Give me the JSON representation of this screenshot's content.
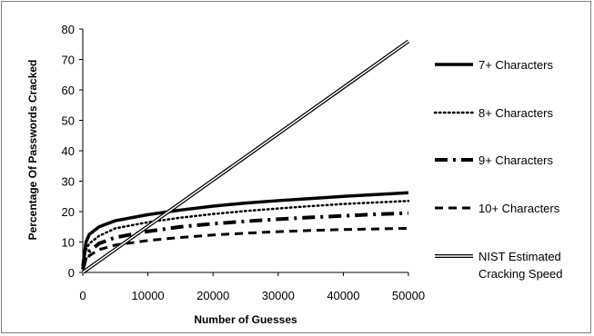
{
  "chart_data": {
    "type": "line",
    "title": "",
    "xlabel": "Number of Guesses",
    "ylabel": "Percentage Of Passwords Cracked",
    "xlim": [
      0,
      50000
    ],
    "ylim": [
      0,
      80
    ],
    "x_ticks": [
      0,
      10000,
      20000,
      30000,
      40000,
      50000
    ],
    "y_ticks": [
      0,
      10,
      20,
      30,
      40,
      50,
      60,
      70,
      80
    ],
    "grid": false,
    "legend_position": "right",
    "x": [
      0,
      500,
      1000,
      2500,
      5000,
      10000,
      15000,
      20000,
      25000,
      30000,
      35000,
      40000,
      45000,
      50000
    ],
    "series": [
      {
        "name": "7+ Characters",
        "style": "solid",
        "values": [
          2,
          10,
          12.5,
          15,
          17,
          19,
          20.5,
          21.8,
          22.8,
          23.6,
          24.3,
          25,
          25.6,
          26.2
        ]
      },
      {
        "name": "8+ Characters",
        "style": "dotted",
        "values": [
          1.5,
          7.5,
          9.5,
          12,
          14.5,
          16.5,
          18,
          19.2,
          20.2,
          21,
          21.8,
          22.5,
          23,
          23.5
        ]
      },
      {
        "name": "9+ Characters",
        "style": "dash-dot",
        "values": [
          1,
          5,
          7,
          9.5,
          11.5,
          13.5,
          15,
          16,
          16.8,
          17.5,
          18.1,
          18.6,
          19.1,
          19.5
        ]
      },
      {
        "name": "10+ Characters",
        "style": "dashed",
        "values": [
          1,
          4,
          5.5,
          7.5,
          9,
          10.5,
          11.5,
          12.3,
          12.9,
          13.4,
          13.8,
          14.1,
          14.3,
          14.5
        ]
      },
      {
        "name": "NIST Estimated Cracking Speed",
        "style": "double",
        "values": [
          0,
          0.76,
          1.52,
          3.8,
          7.6,
          15.2,
          22.8,
          30.4,
          38,
          45.6,
          53.2,
          60.8,
          68.4,
          76
        ]
      }
    ]
  },
  "colors": {
    "line": "#000000",
    "frame": "#7f7f7f",
    "background": "#ffffff"
  }
}
